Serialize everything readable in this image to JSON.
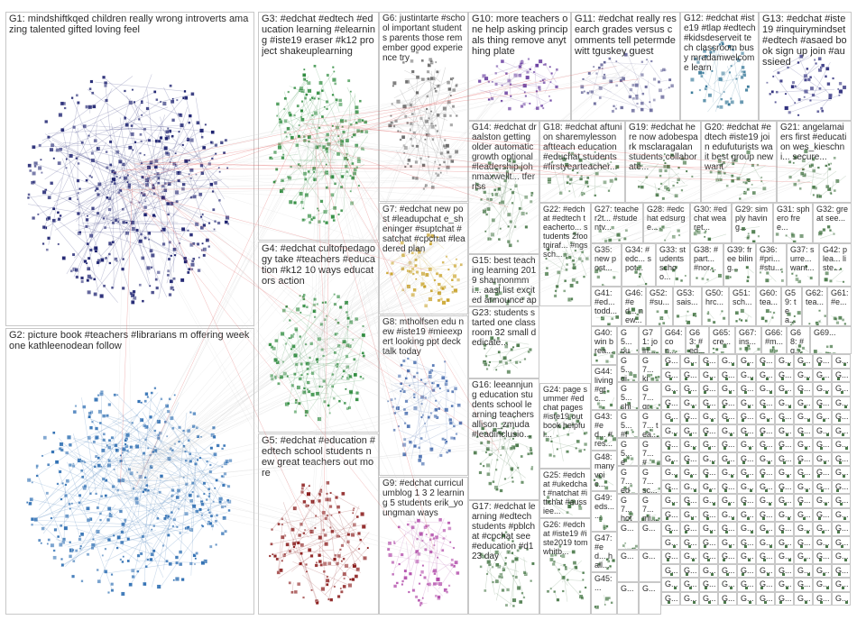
{
  "graph_title": "",
  "colors": {
    "background": "#ffffff",
    "border": "#c8c8c8",
    "edge": "#d0d0d0",
    "edge_highlight": "#e06060",
    "label": "#2b2b2b",
    "group_palette": {
      "G1": "#1a1f6e",
      "G2": "#2f6fb3",
      "G3": "#2e8b3e",
      "G4": "#2e8b3e",
      "G5": "#8b1e1e",
      "G6": "#6b6b6b",
      "G7": "#c9a227",
      "G8": "#4a6fb0",
      "G9": "#b048a8",
      "G10": "#6a3fa0",
      "G11": "#666699",
      "G12": "#3a7a9a",
      "G13": "#2a2a7a",
      "default": "#4b7a4b"
    }
  },
  "groups": [
    {
      "id": "G1",
      "label": "G1: mindshiftkqed children really wrong introverts amazing talented gifted loving feel"
    },
    {
      "id": "G2",
      "label": "G2: picture book #teachers #librarians m offering week one kathleenodean follow"
    },
    {
      "id": "G3",
      "label": "G3: #edchat #edtech #education learning #elearning #iste19 eraser #k12 project shakeuplearning"
    },
    {
      "id": "G4",
      "label": "G4: #edchat cultofpedagogy take #teachers #education #k12 10 ways educators action"
    },
    {
      "id": "G5",
      "label": "G5: #edchat #education #edtech school students new great teachers out more"
    },
    {
      "id": "G6",
      "label": "G6: justintarte #school important students parents those remember good experience try"
    },
    {
      "id": "G7",
      "label": "G7: #edchat new post #leadupchat e_sheninger #suptchat #satchat #cpchat #leadered plan"
    },
    {
      "id": "G8",
      "label": "G8: mtholfsen edu new #iste19 #mieexpert looking ppt deck talk today"
    },
    {
      "id": "G9",
      "label": "G9: #edchat curriculumblog 1 3 2 learning 5 students erik_youngman ways"
    },
    {
      "id": "G10",
      "label": "G10: more teachers one help asking principals thing remove anything plate"
    },
    {
      "id": "G11",
      "label": "G11: #edchat really research grades versus comments tell petermdewitt tguskey guest"
    },
    {
      "id": "G12",
      "label": "G12: #edchat #iste19 #tlap #edtech #kidsdeserveit tech classroom busy mradamwelcome learn"
    },
    {
      "id": "G13",
      "label": "G13: #edchat #iste19 #inquirymindset #edtech #asaed book sign up join #aussieed"
    },
    {
      "id": "G14",
      "label": "G14: #edchat draalston getting older automatic growth optional #leadership johnmaxwellt... tferriss"
    },
    {
      "id": "G15",
      "label": "G15: best teaching learning 2019 shannonmmi... aasl list excited announce apps"
    },
    {
      "id": "G16",
      "label": "G16: leeannjung education students school learning teachers allison_zmuda #leadinclusio..."
    },
    {
      "id": "G17",
      "label": "G17: #edchat learning #edtech students #pblchat #cpchat see #education #d123 day"
    },
    {
      "id": "G18",
      "label": "G18: #edchat aftunion sharemylesson aftteach education #educhat students #firstyearteacher..."
    },
    {
      "id": "G19",
      "label": "G19: #edchat here now adobespark msclaragalan students collaborate..."
    },
    {
      "id": "G20",
      "label": "G20: #edchat #edtech #iste19 join edufuturists wait best group new want"
    },
    {
      "id": "G21",
      "label": "G21: angelamaiers first #education wes_kieschni... secure..."
    },
    {
      "id": "G22",
      "label": "G22: #edchat #edtech teacherto... students 2footgiraf... #ngssch..."
    },
    {
      "id": "G23",
      "label": "G23: students started one classroom 32 small dedicate..."
    },
    {
      "id": "G24",
      "label": "G24: page summer #edchat pages #iste19 out book helpful..."
    },
    {
      "id": "G25",
      "label": "G25: #edchat #ukedchat #natchat #ittchat #aussiee..."
    },
    {
      "id": "G26",
      "label": "G26: #edchat #iste19 #iste2019 tomwhitb..."
    },
    {
      "id": "G27",
      "label": "G27: teacher2t... #studentv..."
    },
    {
      "id": "G28",
      "label": "G28: #edchat edsurge..."
    },
    {
      "id": "G29",
      "label": "G29: simply having..."
    },
    {
      "id": "G30",
      "label": "G30: #edchat wearet..."
    },
    {
      "id": "G31",
      "label": "G31: sphero free..."
    },
    {
      "id": "G32",
      "label": "G32: great see..."
    },
    {
      "id": "G33",
      "label": "G33: students schoo..."
    },
    {
      "id": "G34",
      "label": "G34: #edc... spot..."
    },
    {
      "id": "G35",
      "label": "G35: new post..."
    },
    {
      "id": "G36",
      "label": "G36: #pri... #stu..."
    },
    {
      "id": "G37",
      "label": "G37: surre... want..."
    },
    {
      "id": "G38",
      "label": "G38: #part... #nor..."
    },
    {
      "id": "G39",
      "label": "G39: free biling..."
    },
    {
      "id": "G40",
      "label": "G40: win brea..."
    },
    {
      "id": "G41",
      "label": "G41: #ed... todd..."
    },
    {
      "id": "G42",
      "label": "G42: plea... liste..."
    },
    {
      "id": "G43",
      "label": "G43: #ed... #res..."
    },
    {
      "id": "G44",
      "label": "G44: living #gtc..."
    },
    {
      "id": "G45",
      "label": "G45: ..."
    },
    {
      "id": "G46",
      "label": "G46: #ed... new..."
    },
    {
      "id": "G47",
      "label": "G47: #ed... hall..."
    },
    {
      "id": "G48",
      "label": "G48: many voic..."
    },
    {
      "id": "G49",
      "label": "G49: eds... ..."
    },
    {
      "id": "G50",
      "label": "G50: hrc..."
    },
    {
      "id": "G51",
      "label": "G51: sch..."
    },
    {
      "id": "G52",
      "label": "G52: #su..."
    },
    {
      "id": "G53",
      "label": "G53: sais..."
    },
    {
      "id": "G54",
      "label": "G5... pul..."
    },
    {
      "id": "G55",
      "label": "G5... giv..."
    },
    {
      "id": "G56",
      "label": "G5... shif..."
    },
    {
      "id": "G57",
      "label": "G5... #fe..."
    },
    {
      "id": "G58",
      "label": "G5... ed..."
    },
    {
      "id": "G59",
      "label": "G59: tea..."
    },
    {
      "id": "G60",
      "label": "G60: tea..."
    },
    {
      "id": "G61",
      "label": "G61: #e..."
    },
    {
      "id": "G62",
      "label": "G62: tea..."
    },
    {
      "id": "G63",
      "label": "G63: #ed..."
    },
    {
      "id": "G64",
      "label": "G64: con..."
    },
    {
      "id": "G65",
      "label": "G65: cre..."
    },
    {
      "id": "G66",
      "label": "G66: #m..."
    },
    {
      "id": "G67",
      "label": "G67: ins..."
    },
    {
      "id": "G68",
      "label": "G68: #q..."
    },
    {
      "id": "G69",
      "label": "G69..."
    },
    {
      "id": "G70",
      "label": "G7... edu..."
    },
    {
      "id": "G71",
      "label": "G71: join..."
    },
    {
      "id": "G72",
      "label": "G7... kid..."
    },
    {
      "id": "G73",
      "label": "G7... gro..."
    },
    {
      "id": "G74",
      "label": "G7... tea..."
    },
    {
      "id": "G75",
      "label": "G7... #w..."
    },
    {
      "id": "G76",
      "label": "G7... sc..."
    },
    {
      "id": "G77",
      "label": "G7... mi..."
    },
    {
      "id": "G78",
      "label": "G7... hoth..."
    },
    {
      "id": "G79",
      "label": "G..."
    }
  ],
  "small_labels": {
    "col_g45": "G4... #ed... #res...",
    "col_g46": "G4... not... nat...",
    "col_gfill": "G..."
  }
}
